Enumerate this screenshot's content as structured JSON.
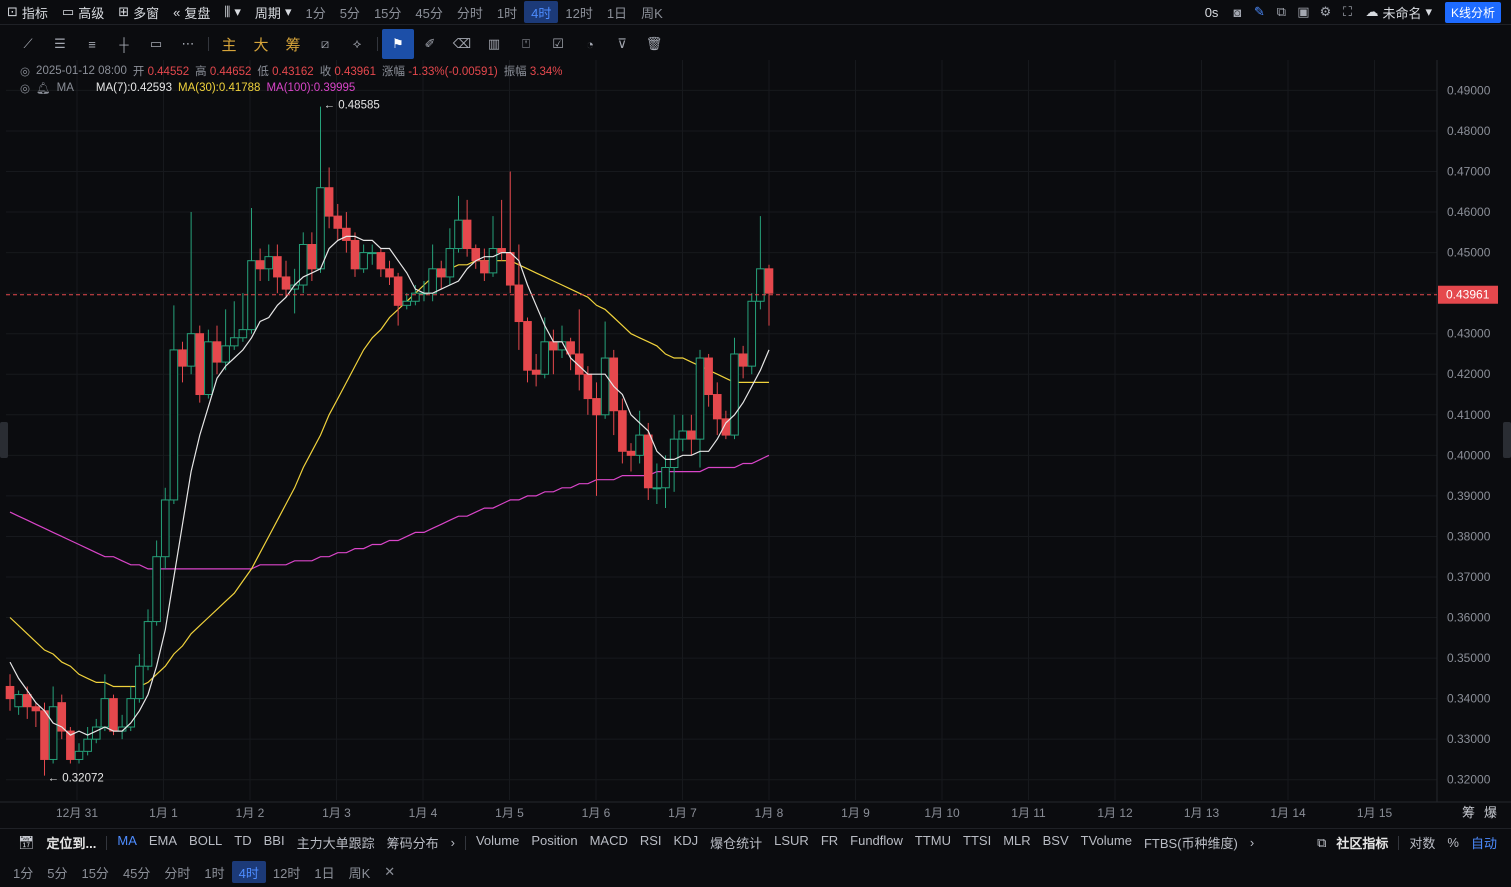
{
  "topbar": {
    "indicator": "指标",
    "advanced": "高级",
    "multiwin": "多窗",
    "replay": "复盘",
    "period": "周期",
    "timeframes": [
      "1分",
      "5分",
      "15分",
      "45分",
      "分时",
      "1时",
      "4时",
      "12时",
      "1日",
      "周K"
    ],
    "active_timeframe": "4时",
    "countdown": "0s",
    "layout_name": "未命名",
    "kline_btn": "K线分析"
  },
  "drawbar": {
    "main": "主",
    "big": "大",
    "chips": "筹"
  },
  "legend": {
    "date": "2025-01-12 08:00",
    "open_l": "开",
    "open": "0.44552",
    "high_l": "高",
    "high": "0.44652",
    "low_l": "低",
    "low": "0.43162",
    "close_l": "收",
    "close": "0.43961",
    "chg_l": "涨幅",
    "chg": "-1.33%(-0.00591)",
    "amp_l": "振幅",
    "amp": "3.34%",
    "ma_label": "MA",
    "ma7": "MA(7):0.42593",
    "ma30": "MA(30):0.41788",
    "ma100": "MA(100):0.39995"
  },
  "colors": {
    "up": "#26a17a",
    "down": "#e5484d",
    "ma7": "#e6e6e6",
    "ma30": "#f0d23c",
    "ma100": "#d945c8",
    "accent": "#1e6bff"
  },
  "chart_data": {
    "type": "candlestick",
    "ylim": [
      0.315,
      0.4975
    ],
    "y_ticks": [
      "0.49000",
      "0.48000",
      "0.47000",
      "0.46000",
      "0.45000",
      "0.44000",
      "0.43000",
      "0.42000",
      "0.41000",
      "0.40000",
      "0.39000",
      "0.38000",
      "0.37000",
      "0.36000",
      "0.35000",
      "0.34000",
      "0.33000",
      "0.32000"
    ],
    "x_labels": [
      "12月 31",
      "1月 1",
      "1月 2",
      "1月 3",
      "1月 4",
      "1月 5",
      "1月 6",
      "1月 7",
      "1月 8",
      "1月 9",
      "1月 10",
      "1月 11",
      "1月 12",
      "1月 13",
      "1月 14",
      "1月 15"
    ],
    "last_price": "0.43961",
    "max_label": "← 0.48585",
    "min_label": "← 0.32072",
    "scale_labels": [
      "筹",
      "爆"
    ],
    "candles": [
      [
        0.343,
        0.34,
        0.346,
        0.337
      ],
      [
        0.338,
        0.341,
        0.342,
        0.336
      ],
      [
        0.341,
        0.338,
        0.343,
        0.335
      ],
      [
        0.338,
        0.337,
        0.339,
        0.333
      ],
      [
        0.337,
        0.325,
        0.339,
        0.321
      ],
      [
        0.325,
        0.338,
        0.343,
        0.324
      ],
      [
        0.339,
        0.332,
        0.341,
        0.33
      ],
      [
        0.332,
        0.325,
        0.333,
        0.324
      ],
      [
        0.325,
        0.327,
        0.329,
        0.324
      ],
      [
        0.327,
        0.33,
        0.333,
        0.326
      ],
      [
        0.33,
        0.333,
        0.335,
        0.329
      ],
      [
        0.333,
        0.34,
        0.346,
        0.332
      ],
      [
        0.34,
        0.332,
        0.341,
        0.331
      ],
      [
        0.332,
        0.333,
        0.336,
        0.33
      ],
      [
        0.333,
        0.34,
        0.343,
        0.332
      ],
      [
        0.34,
        0.348,
        0.351,
        0.339
      ],
      [
        0.348,
        0.359,
        0.362,
        0.347
      ],
      [
        0.359,
        0.375,
        0.379,
        0.358
      ],
      [
        0.375,
        0.389,
        0.392,
        0.372
      ],
      [
        0.389,
        0.426,
        0.437,
        0.388
      ],
      [
        0.426,
        0.422,
        0.428,
        0.418
      ],
      [
        0.422,
        0.43,
        0.46,
        0.42
      ],
      [
        0.43,
        0.415,
        0.432,
        0.413
      ],
      [
        0.415,
        0.428,
        0.431,
        0.414
      ],
      [
        0.428,
        0.423,
        0.432,
        0.42
      ],
      [
        0.423,
        0.427,
        0.436,
        0.421
      ],
      [
        0.427,
        0.429,
        0.438,
        0.426
      ],
      [
        0.429,
        0.431,
        0.44,
        0.428
      ],
      [
        0.431,
        0.448,
        0.461,
        0.43
      ],
      [
        0.448,
        0.446,
        0.451,
        0.443
      ],
      [
        0.446,
        0.449,
        0.452,
        0.443
      ],
      [
        0.449,
        0.444,
        0.452,
        0.44
      ],
      [
        0.444,
        0.441,
        0.448,
        0.439
      ],
      [
        0.441,
        0.442,
        0.446,
        0.435
      ],
      [
        0.442,
        0.452,
        0.455,
        0.44
      ],
      [
        0.452,
        0.446,
        0.455,
        0.443
      ],
      [
        0.446,
        0.466,
        0.486,
        0.445
      ],
      [
        0.466,
        0.459,
        0.471,
        0.456
      ],
      [
        0.459,
        0.456,
        0.462,
        0.453
      ],
      [
        0.456,
        0.453,
        0.46,
        0.45
      ],
      [
        0.453,
        0.446,
        0.455,
        0.444
      ],
      [
        0.446,
        0.45,
        0.452,
        0.445
      ],
      [
        0.45,
        0.45,
        0.452,
        0.447
      ],
      [
        0.45,
        0.446,
        0.451,
        0.444
      ],
      [
        0.446,
        0.444,
        0.448,
        0.442
      ],
      [
        0.444,
        0.437,
        0.445,
        0.432
      ],
      [
        0.437,
        0.438,
        0.44,
        0.436
      ],
      [
        0.438,
        0.44,
        0.442,
        0.437
      ],
      [
        0.44,
        0.44,
        0.443,
        0.438
      ],
      [
        0.44,
        0.446,
        0.452,
        0.438
      ],
      [
        0.446,
        0.444,
        0.448,
        0.441
      ],
      [
        0.444,
        0.451,
        0.456,
        0.442
      ],
      [
        0.451,
        0.458,
        0.464,
        0.45
      ],
      [
        0.458,
        0.451,
        0.463,
        0.449
      ],
      [
        0.451,
        0.448,
        0.452,
        0.446
      ],
      [
        0.448,
        0.445,
        0.451,
        0.443
      ],
      [
        0.445,
        0.451,
        0.459,
        0.444
      ],
      [
        0.451,
        0.45,
        0.463,
        0.448
      ],
      [
        0.45,
        0.442,
        0.47,
        0.44
      ],
      [
        0.442,
        0.433,
        0.452,
        0.426
      ],
      [
        0.433,
        0.421,
        0.434,
        0.418
      ],
      [
        0.421,
        0.42,
        0.425,
        0.417
      ],
      [
        0.42,
        0.428,
        0.434,
        0.419
      ],
      [
        0.428,
        0.426,
        0.431,
        0.42
      ],
      [
        0.426,
        0.428,
        0.432,
        0.424
      ],
      [
        0.428,
        0.425,
        0.429,
        0.421
      ],
      [
        0.425,
        0.42,
        0.436,
        0.416
      ],
      [
        0.42,
        0.414,
        0.422,
        0.41
      ],
      [
        0.414,
        0.41,
        0.418,
        0.39
      ],
      [
        0.41,
        0.424,
        0.433,
        0.409
      ],
      [
        0.424,
        0.411,
        0.426,
        0.405
      ],
      [
        0.411,
        0.401,
        0.414,
        0.398
      ],
      [
        0.401,
        0.4,
        0.403,
        0.396
      ],
      [
        0.4,
        0.405,
        0.411,
        0.398
      ],
      [
        0.405,
        0.392,
        0.408,
        0.389
      ],
      [
        0.392,
        0.392,
        0.398,
        0.388
      ],
      [
        0.392,
        0.397,
        0.4,
        0.387
      ],
      [
        0.397,
        0.404,
        0.41,
        0.391
      ],
      [
        0.404,
        0.406,
        0.41,
        0.401
      ],
      [
        0.406,
        0.404,
        0.41,
        0.4
      ],
      [
        0.404,
        0.424,
        0.426,
        0.397
      ],
      [
        0.424,
        0.415,
        0.425,
        0.412
      ],
      [
        0.415,
        0.409,
        0.418,
        0.405
      ],
      [
        0.409,
        0.405,
        0.411,
        0.404
      ],
      [
        0.405,
        0.425,
        0.429,
        0.404
      ],
      [
        0.425,
        0.422,
        0.427,
        0.419
      ],
      [
        0.422,
        0.438,
        0.44,
        0.42
      ],
      [
        0.438,
        0.446,
        0.459,
        0.436
      ],
      [
        0.446,
        0.44,
        0.447,
        0.432
      ]
    ],
    "ma7": [
      0.349,
      0.345,
      0.342,
      0.339,
      0.337,
      0.334,
      0.333,
      0.331,
      0.332,
      0.331,
      0.332,
      0.333,
      0.332,
      0.332,
      0.334,
      0.337,
      0.341,
      0.348,
      0.357,
      0.37,
      0.383,
      0.396,
      0.405,
      0.412,
      0.419,
      0.422,
      0.424,
      0.426,
      0.429,
      0.433,
      0.434,
      0.437,
      0.439,
      0.442,
      0.444,
      0.445,
      0.446,
      0.451,
      0.453,
      0.454,
      0.454,
      0.453,
      0.453,
      0.451,
      0.451,
      0.448,
      0.445,
      0.441,
      0.44,
      0.44,
      0.441,
      0.442,
      0.443,
      0.446,
      0.448,
      0.449,
      0.449,
      0.45,
      0.45,
      0.448,
      0.442,
      0.437,
      0.432,
      0.428,
      0.428,
      0.424,
      0.422,
      0.42,
      0.42,
      0.42,
      0.417,
      0.415,
      0.41,
      0.408,
      0.406,
      0.401,
      0.399,
      0.399,
      0.4,
      0.4,
      0.401,
      0.401,
      0.404,
      0.408,
      0.41,
      0.413,
      0.417,
      0.421,
      0.426
    ],
    "ma30": [
      0.36,
      0.358,
      0.356,
      0.354,
      0.352,
      0.351,
      0.349,
      0.348,
      0.346,
      0.345,
      0.344,
      0.344,
      0.343,
      0.343,
      0.343,
      0.343,
      0.344,
      0.346,
      0.348,
      0.351,
      0.353,
      0.356,
      0.358,
      0.36,
      0.362,
      0.364,
      0.366,
      0.369,
      0.372,
      0.376,
      0.38,
      0.384,
      0.388,
      0.392,
      0.397,
      0.401,
      0.405,
      0.41,
      0.414,
      0.418,
      0.422,
      0.426,
      0.429,
      0.431,
      0.434,
      0.436,
      0.438,
      0.44,
      0.442,
      0.444,
      0.445,
      0.446,
      0.447,
      0.447,
      0.448,
      0.448,
      0.448,
      0.448,
      0.448,
      0.447,
      0.446,
      0.445,
      0.444,
      0.443,
      0.442,
      0.441,
      0.44,
      0.439,
      0.437,
      0.436,
      0.434,
      0.432,
      0.43,
      0.429,
      0.428,
      0.427,
      0.425,
      0.424,
      0.424,
      0.423,
      0.422,
      0.421,
      0.42,
      0.419,
      0.418,
      0.418,
      0.418,
      0.418,
      0.418
    ],
    "ma100": [
      0.386,
      0.385,
      0.384,
      0.383,
      0.382,
      0.381,
      0.38,
      0.379,
      0.378,
      0.377,
      0.376,
      0.375,
      0.375,
      0.374,
      0.373,
      0.373,
      0.372,
      0.372,
      0.372,
      0.372,
      0.372,
      0.372,
      0.372,
      0.372,
      0.372,
      0.372,
      0.372,
      0.372,
      0.372,
      0.373,
      0.373,
      0.373,
      0.373,
      0.374,
      0.374,
      0.374,
      0.375,
      0.375,
      0.376,
      0.376,
      0.377,
      0.377,
      0.378,
      0.378,
      0.379,
      0.379,
      0.38,
      0.381,
      0.381,
      0.382,
      0.383,
      0.384,
      0.385,
      0.385,
      0.386,
      0.387,
      0.387,
      0.388,
      0.389,
      0.389,
      0.39,
      0.39,
      0.391,
      0.391,
      0.392,
      0.392,
      0.393,
      0.393,
      0.394,
      0.394,
      0.394,
      0.395,
      0.395,
      0.395,
      0.395,
      0.396,
      0.396,
      0.396,
      0.396,
      0.396,
      0.396,
      0.397,
      0.397,
      0.397,
      0.397,
      0.398,
      0.398,
      0.399,
      0.4
    ]
  },
  "indicators": {
    "locate": "定位到...",
    "main": [
      "MA",
      "EMA",
      "BOLL",
      "TD",
      "BBI",
      "主力大单跟踪",
      "筹码分布"
    ],
    "active": "MA",
    "sub": [
      "Volume",
      "Position",
      "MACD",
      "RSI",
      "KDJ",
      "爆仓统计",
      "LSUR",
      "FR",
      "Fundflow",
      "TTMU",
      "TTSI",
      "MLR",
      "BSV",
      "TVolume",
      "FTBS(币种维度)"
    ],
    "community": "社区指标",
    "log": "对数",
    "percent": "%",
    "auto": "自动"
  },
  "bottom_timeframes": [
    "1分",
    "5分",
    "15分",
    "45分",
    "分时",
    "1时",
    "4时",
    "12时",
    "1日",
    "周K"
  ],
  "bottom_active": "4时"
}
